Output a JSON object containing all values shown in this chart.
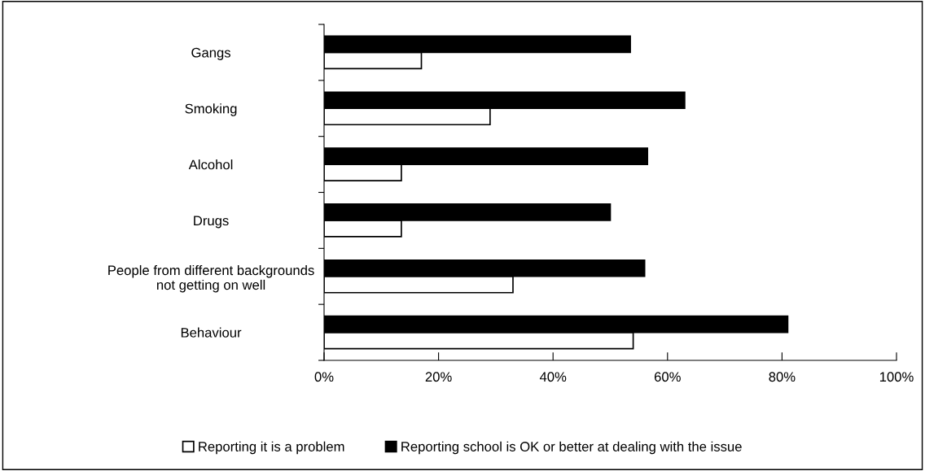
{
  "chart_data": {
    "type": "bar",
    "orientation": "horizontal",
    "categories": [
      "Gangs",
      "Smoking",
      "Alcohol",
      "Drugs",
      "People from different backgrounds\nnot getting on well",
      "Behaviour"
    ],
    "series": [
      {
        "name": "Reporting it is a problem",
        "color": "#ffffff",
        "values": [
          17,
          29,
          13.5,
          13.5,
          33,
          54
        ]
      },
      {
        "name": "Reporting school is OK or better at dealing with the issue",
        "color": "#000000",
        "values": [
          53.5,
          63,
          56.5,
          50,
          56,
          81
        ]
      }
    ],
    "xlim": [
      0,
      100
    ],
    "xticks": [
      {
        "value": 0,
        "label": "0%"
      },
      {
        "value": 20,
        "label": "20%"
      },
      {
        "value": 40,
        "label": "40%"
      },
      {
        "value": 60,
        "label": "60%"
      },
      {
        "value": 80,
        "label": "80%"
      },
      {
        "value": 100,
        "label": "100%"
      }
    ],
    "grid": false,
    "legend": "bottom"
  }
}
